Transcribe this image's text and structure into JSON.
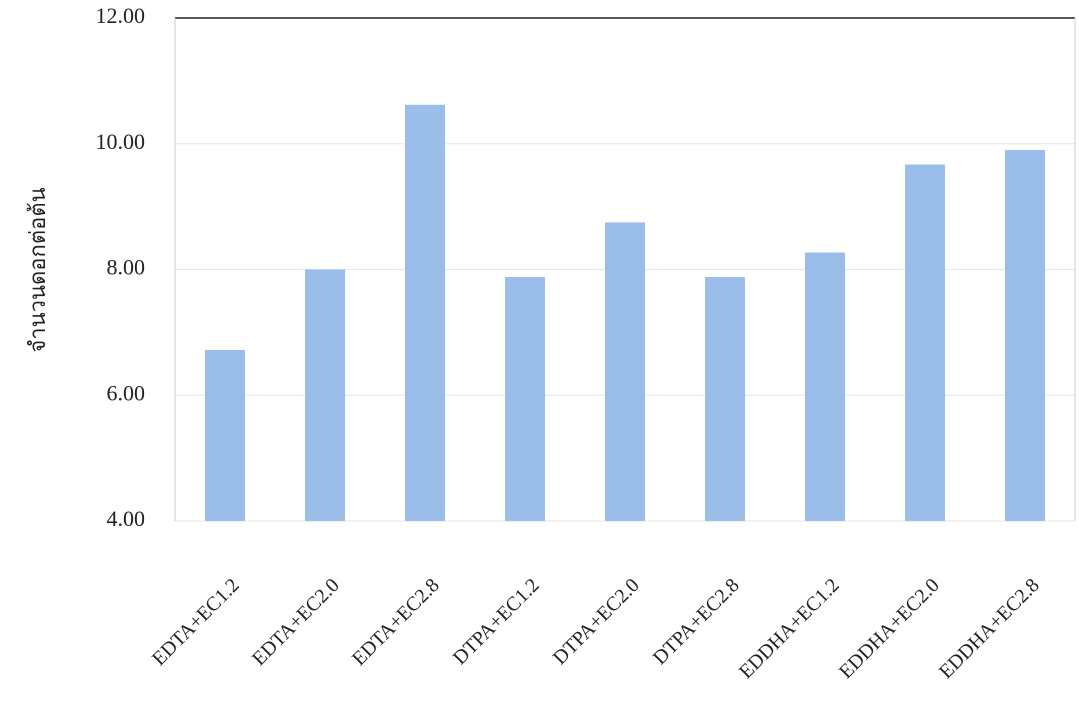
{
  "chart_data": {
    "type": "bar",
    "y_label": "จำนวนดอกต่อต้น",
    "categories": [
      "EDTA+EC1.2",
      "EDTA+EC2.0",
      "EDTA+EC2.8",
      "DTPA+EC1.2",
      "DTPA+EC2.0",
      "DTPA+EC2.8",
      "EDDHA+EC1.2",
      "EDDHA+EC2.0",
      "EDDHA+EC2.8"
    ],
    "values": [
      6.72,
      8.0,
      10.62,
      7.88,
      8.75,
      7.88,
      8.27,
      9.67,
      9.9
    ],
    "color": "#9bbde9",
    "ylim": [
      4,
      12
    ],
    "yticks": [
      {
        "value": 4,
        "label": "4.00"
      },
      {
        "value": 6,
        "label": "6.00"
      },
      {
        "value": 8,
        "label": "8.00"
      },
      {
        "value": 10,
        "label": "10.00"
      },
      {
        "value": 12,
        "label": "12.00"
      }
    ],
    "grid": true
  }
}
